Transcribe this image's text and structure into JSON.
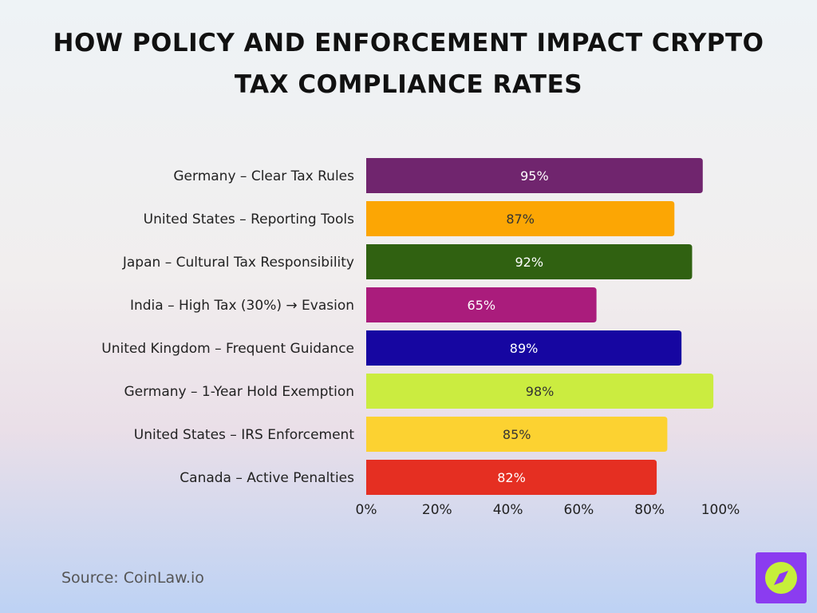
{
  "title": "How Policy and Enforcement Impact Crypto Tax Compliance Rates",
  "source": "Source: CoinLaw.io",
  "chart_data": {
    "type": "bar",
    "orientation": "horizontal",
    "title": "How Policy and Enforcement Impact Crypto Tax Compliance Rates",
    "xlabel": "",
    "ylabel": "",
    "xlim": [
      0,
      100
    ],
    "grid": false,
    "categories": [
      "Germany – Clear Tax Rules",
      "United States – Reporting Tools",
      "Japan – Cultural Tax Responsibility",
      "India – High Tax (30%) → Evasion",
      "United Kingdom – Frequent Guidance",
      "Germany – 1-Year Hold Exemption",
      "United States – IRS Enforcement",
      "Canada – Active Penalties"
    ],
    "values": [
      95,
      87,
      92,
      65,
      89,
      98,
      85,
      82
    ],
    "value_labels": [
      "95%",
      "87%",
      "92%",
      "65%",
      "89%",
      "98%",
      "85%",
      "82%"
    ],
    "colors": [
      "#70256e",
      "#fca604",
      "#306111",
      "#aa1c7c",
      "#1606a1",
      "#cbec40",
      "#fcd231",
      "#e52f22"
    ],
    "label_colors": [
      "#ffffff",
      "#333333",
      "#ffffff",
      "#ffffff",
      "#ffffff",
      "#333333",
      "#333333",
      "#ffffff"
    ],
    "x_ticks": [
      0,
      20,
      40,
      60,
      80,
      100
    ],
    "x_tick_labels": [
      "0%",
      "20%",
      "40%",
      "60%",
      "80%",
      "100%"
    ]
  }
}
